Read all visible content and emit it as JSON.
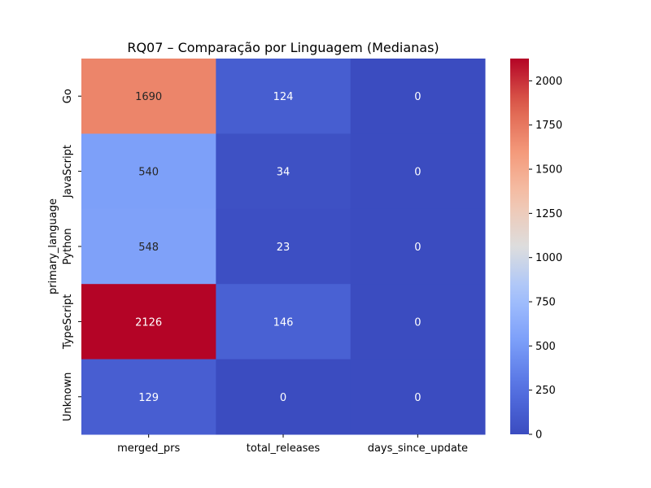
{
  "chart_data": {
    "type": "heatmap",
    "title": "RQ07 – Comparação por Linguagem (Medianas)",
    "xlabel": "",
    "ylabel": "primary_language",
    "columns": [
      "merged_prs",
      "total_releases",
      "days_since_update"
    ],
    "rows": [
      "Go",
      "JavaScript",
      "Python",
      "TypeScript",
      "Unknown"
    ],
    "values": [
      [
        1690,
        124,
        0
      ],
      [
        540,
        34,
        0
      ],
      [
        548,
        23,
        0
      ],
      [
        2126,
        146,
        0
      ],
      [
        129,
        0,
        0
      ]
    ],
    "colorbar": {
      "colormap": "coolwarm",
      "min": 0,
      "max": 2126,
      "ticks": [
        0,
        250,
        500,
        750,
        1000,
        1250,
        1500,
        1750,
        2000
      ]
    }
  }
}
